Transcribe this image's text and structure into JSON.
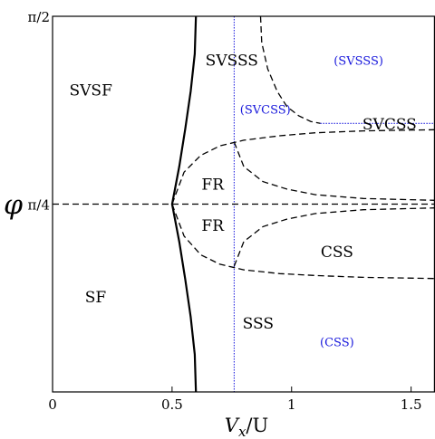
{
  "chart_data": {
    "type": "line",
    "xlabel": "Vₓ/U",
    "ylabel_symbol": "φ",
    "xlim": [
      0,
      1.6
    ],
    "ylim_label": [
      "0",
      "π/4",
      "π/2"
    ],
    "x_ticks": [
      {
        "value": 0,
        "label": "0"
      },
      {
        "value": 0.5,
        "label": "0.5"
      },
      {
        "value": 1,
        "label": "1"
      },
      {
        "value": 1.5,
        "label": "1.5"
      }
    ],
    "y_ticks": [
      {
        "value": 0.5,
        "label": "π/4"
      },
      {
        "value": 1.0,
        "label": "π/2"
      }
    ],
    "y_units_note": "y in fractions of π/2",
    "regions": [
      {
        "name": "SVSF",
        "x": 0.16,
        "y": 0.8,
        "style": "black"
      },
      {
        "name": "SF",
        "x": 0.18,
        "y": 0.25,
        "style": "black"
      },
      {
        "name": "SVSSS",
        "x": 0.75,
        "y": 0.88,
        "style": "black"
      },
      {
        "name": "SVCSS",
        "x": 1.41,
        "y": 0.71,
        "style": "black"
      },
      {
        "name": "FR",
        "x": 0.67,
        "y": 0.55,
        "style": "black"
      },
      {
        "name": "FR",
        "x": 0.67,
        "y": 0.44,
        "style": "black"
      },
      {
        "name": "CSS",
        "x": 1.19,
        "y": 0.37,
        "style": "black"
      },
      {
        "name": "SSS",
        "x": 0.86,
        "y": 0.18,
        "style": "black"
      },
      {
        "name": "(SVSSS)",
        "x": 1.28,
        "y": 0.88,
        "style": "blue"
      },
      {
        "name": "(SVCSS)",
        "x": 0.89,
        "y": 0.75,
        "style": "blue"
      },
      {
        "name": "(CSS)",
        "x": 1.19,
        "y": 0.13,
        "style": "blue"
      }
    ],
    "series": [
      {
        "style": "solid",
        "points": [
          [
            0.6,
            1.0
          ],
          [
            0.595,
            0.9
          ],
          [
            0.578,
            0.8
          ],
          [
            0.555,
            0.7
          ],
          [
            0.53,
            0.6
          ],
          [
            0.5,
            0.5
          ],
          [
            0.53,
            0.4
          ],
          [
            0.555,
            0.3
          ],
          [
            0.578,
            0.2
          ],
          [
            0.595,
            0.1
          ],
          [
            0.6,
            0.0
          ]
        ]
      },
      {
        "style": "dotted-blue",
        "points": [
          [
            0.76,
            1.0
          ],
          [
            0.76,
            0.0
          ]
        ]
      },
      {
        "style": "dotted-blue",
        "points": [
          [
            1.12,
            0.715
          ],
          [
            1.6,
            0.715
          ]
        ]
      },
      {
        "style": "dashed",
        "points": [
          [
            0.0,
            0.5
          ],
          [
            1.6,
            0.5
          ]
        ]
      },
      {
        "style": "dashed",
        "points": [
          [
            0.5,
            0.5
          ],
          [
            0.55,
            0.585
          ],
          [
            0.62,
            0.63
          ],
          [
            0.7,
            0.655
          ],
          [
            0.8,
            0.67
          ],
          [
            0.95,
            0.682
          ],
          [
            1.1,
            0.69
          ],
          [
            1.3,
            0.695
          ],
          [
            1.6,
            0.698
          ]
        ]
      },
      {
        "style": "dashed",
        "points": [
          [
            0.5,
            0.5
          ],
          [
            0.55,
            0.415
          ],
          [
            0.62,
            0.365
          ],
          [
            0.7,
            0.34
          ],
          [
            0.8,
            0.325
          ],
          [
            0.95,
            0.315
          ],
          [
            1.1,
            0.31
          ],
          [
            1.3,
            0.305
          ],
          [
            1.6,
            0.302
          ]
        ]
      },
      {
        "style": "dashed",
        "points": [
          [
            0.87,
            1.0
          ],
          [
            0.875,
            0.93
          ],
          [
            0.9,
            0.86
          ],
          [
            0.94,
            0.8
          ],
          [
            0.98,
            0.76
          ],
          [
            1.03,
            0.735
          ],
          [
            1.08,
            0.72
          ],
          [
            1.12,
            0.715
          ]
        ]
      },
      {
        "style": "dashed",
        "points": [
          [
            0.76,
            0.665
          ],
          [
            0.8,
            0.6
          ],
          [
            0.88,
            0.56
          ],
          [
            0.98,
            0.54
          ],
          [
            1.1,
            0.525
          ],
          [
            1.3,
            0.515
          ],
          [
            1.6,
            0.51
          ]
        ]
      },
      {
        "style": "dashed",
        "points": [
          [
            0.76,
            0.335
          ],
          [
            0.8,
            0.4
          ],
          [
            0.88,
            0.44
          ],
          [
            0.98,
            0.46
          ],
          [
            1.1,
            0.475
          ],
          [
            1.3,
            0.485
          ],
          [
            1.6,
            0.49
          ]
        ]
      }
    ]
  }
}
